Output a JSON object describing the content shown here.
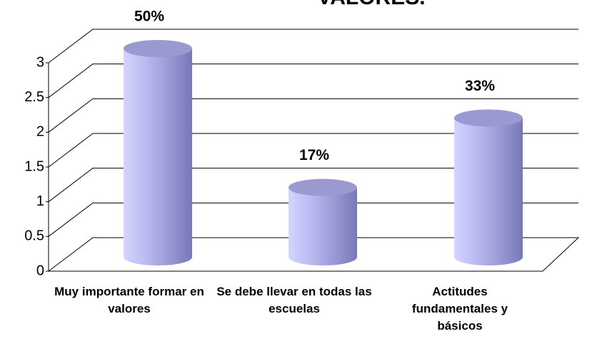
{
  "chart_data": {
    "type": "bar",
    "title": "VALORES.",
    "categories": [
      "Muy importante formar en valores",
      "Se debe llevar en todas las escuelas",
      "Actitudes fundamentales y básicos"
    ],
    "values": [
      3,
      1,
      2
    ],
    "value_labels": [
      "50%",
      "17%",
      "33%"
    ],
    "color": "#a8a8e8",
    "ylim": [
      0,
      3
    ],
    "yticks": [
      0,
      0.5,
      1,
      1.5,
      2,
      2.5,
      3
    ],
    "grid": true
  }
}
